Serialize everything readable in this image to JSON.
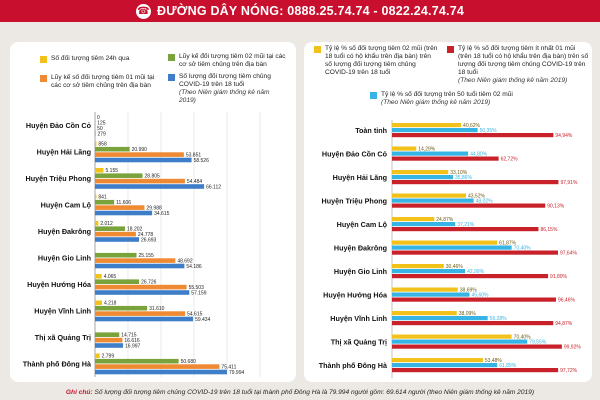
{
  "header": {
    "hotline": "ĐƯỜNG DÂY NÓNG: 0888.25.74.74 - 0822.24.74.74",
    "phone_icon": "phone-icon"
  },
  "colors": {
    "brand_red": "#c8102e",
    "yellow": "#f2c21b",
    "green": "#7aa43b",
    "orange": "#ef8a33",
    "blue": "#3e7ec9",
    "cyan": "#36b4e5",
    "dark_red": "#c8212a"
  },
  "chart_data": [
    {
      "type": "bar",
      "orientation": "horizontal",
      "categories": [
        "Huyện Đảo Cồn Cỏ",
        "Huyện Hải Lăng",
        "Huyện Triệu Phong",
        "Huyện Cam Lộ",
        "Huyện Đakrông",
        "Huyện Gio Linh",
        "Huyện Hướng Hóa",
        "Huyện Vĩnh Linh",
        "Thị xã Quảng Trị",
        "Thành phố Đông Hà"
      ],
      "series": [
        {
          "name": "Số đối tượng tiêm 24h qua",
          "color": "#f2c21b",
          "values": [
            0,
            858,
            5155,
            841,
            2012,
            0,
            4065,
            4218,
            0,
            2799
          ],
          "labels": [
            "0",
            "858",
            "5.155",
            "841",
            "2.012",
            "",
            "4.065",
            "4.218",
            "",
            "2.799"
          ]
        },
        {
          "name": "Lũy kế đối tượng tiêm 02 mũi tại các cơ sở tiêm chủng trên địa bàn",
          "color": "#7aa43b",
          "values": [
            125,
            20990,
            28805,
            11606,
            18202,
            25155,
            26726,
            31610,
            14715,
            50680
          ],
          "labels": [
            "125",
            "20.990",
            "28.805",
            "11.606",
            "18.202",
            "25.155",
            "26.726",
            "31.610",
            "14.715",
            "50.680"
          ]
        },
        {
          "name": "Lũy kế số đối tượng tiêm 01 mũi tại các cơ sở tiêm chủng trên địa bàn",
          "color": "#ef8a33",
          "values": [
            50,
            53851,
            54484,
            29988,
            24778,
            48692,
            55503,
            54615,
            16616,
            75411
          ],
          "labels": [
            "50",
            "53.851",
            "54.484",
            "29.988",
            "24.778",
            "48.692",
            "55.503",
            "54.615",
            "16.616",
            "75.411"
          ]
        },
        {
          "name": "Số lượng đối tượng tiêm chủng COVID-19 trên 18 tuổi",
          "color": "#3e7ec9",
          "values": [
            279,
            58526,
            66112,
            34615,
            26693,
            54186,
            57159,
            59434,
            16997,
            79994
          ],
          "labels": [
            "279",
            "58.526",
            "66.112",
            "34.615",
            "26.693",
            "54.186",
            "57.159",
            "59.434",
            "16.997",
            "79.994"
          ]
        }
      ],
      "legend_note": "(Theo Niên giám thống kê năm 2019)",
      "xlim": [
        0,
        100000
      ],
      "xticks": [
        "0",
        "20.000",
        "40.000",
        "60.000",
        "80.000",
        "100.000"
      ],
      "grid": true
    },
    {
      "type": "bar",
      "orientation": "horizontal",
      "categories": [
        "Toàn tỉnh",
        "Huyện Đảo Cồn Cỏ",
        "Huyện Hải Lăng",
        "Huyện Triệu Phong",
        "Huyện Cam Lộ",
        "Huyện Đakrông",
        "Huyện Gio Linh",
        "Huyện Hướng Hóa",
        "Huyện Vĩnh Linh",
        "Thị xã Quảng Trị",
        "Thành phố Đông Hà"
      ],
      "series": [
        {
          "name": "Tỷ lệ % số đối tượng tiêm 02 mũi (trên 18 tuổi có hộ khẩu trên địa bàn) trên số lượng đối tượng tiêm chủng COVID-19 trên 18 tuổi",
          "color": "#f2c21b",
          "values": [
            40.62,
            14.29,
            33.1,
            43.52,
            24.87,
            61.87,
            30.46,
            38.69,
            38.09,
            70.4,
            53.48
          ],
          "labels": [
            "40,62%",
            "14,29%",
            "33,10%",
            "43,52%",
            "24,87%",
            "61,87%",
            "30,46%",
            "38,69%",
            "38,09%",
            "70,40%",
            "53,48%"
          ]
        },
        {
          "name": "Tỷ lệ % số đối tượng trên 50 tuổi tiêm 02 mũi",
          "color": "#36b4e5",
          "values": [
            50.35,
            44.8,
            35.86,
            48.02,
            37.21,
            70.4,
            42.99,
            45.6,
            56.28,
            79.55,
            61.89
          ],
          "labels": [
            "50,35%",
            "44,80%",
            "35,86%",
            "48,02%",
            "37,21%",
            "70,40%",
            "42,99%",
            "45,60%",
            "56,28%",
            "79,55%",
            "61,89%"
          ]
        },
        {
          "name": "Tỷ lệ % số đối tượng tiêm ít nhất 01 mũi (trên 18 tuổi có hộ khẩu trên địa bàn) trên số lượng đối tượng tiêm chủng COVID-19 trên 18 tuổi",
          "color": "#c8212a",
          "values": [
            94.94,
            62.72,
            97.91,
            90.13,
            86.15,
            97.64,
            91.8,
            96.46,
            94.87,
            99.92,
            97.72
          ],
          "labels": [
            "94,94%",
            "62,72%",
            "97,91%",
            "90,13%",
            "86,15%",
            "97,64%",
            "91,80%",
            "96,46%",
            "94,87%",
            "99,92%",
            "97,72%"
          ]
        }
      ],
      "legend_note": "(Theo Niên giám thống kê năm 2019)",
      "xlim": [
        0,
        100
      ]
    }
  ],
  "footer": {
    "lead": "Ghi chú:",
    "text": "Số lượng đối tượng tiêm chủng COVID-19 trên 18 tuổi tại thành phố Đông Hà là 79.994 người gồm: 69.614 người (theo Niên giám thống kê năm 2019)"
  }
}
